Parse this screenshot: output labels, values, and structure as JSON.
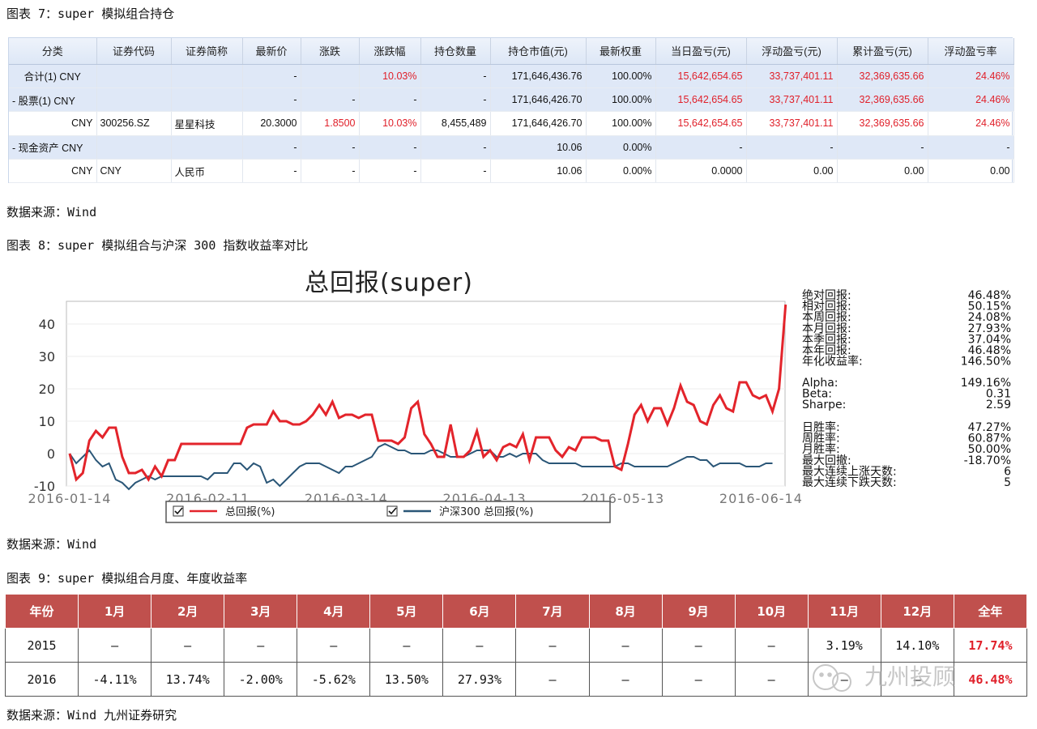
{
  "caption7": "图表 7：super 模拟组合持仓",
  "table7": {
    "headers": [
      "分类",
      "证券代码",
      "证券简称",
      "最新价",
      "涨跌",
      "涨跌幅",
      "持仓数量",
      "持仓市值(元)",
      "最新权重",
      "当日盈亏(元)",
      "浮动盈亏(元)",
      "累计盈亏(元)",
      "浮动盈亏率"
    ],
    "rows": [
      [
        "合计(1)  CNY",
        "",
        "",
        "-",
        "",
        "10.03%",
        "-",
        "171,646,436.76",
        "100.00%",
        "15,642,654.65",
        "33,737,401.11",
        "32,369,635.66",
        "24.46%"
      ],
      [
        "- 股票(1)  CNY",
        "",
        "",
        "-",
        "-",
        "-",
        "-",
        "171,646,426.70",
        "100.00%",
        "15,642,654.65",
        "33,737,401.11",
        "32,369,635.66",
        "24.46%"
      ],
      [
        "CNY",
        "300256.SZ",
        "星星科技",
        "20.3000",
        "1.8500",
        "10.03%",
        "8,455,489",
        "171,646,426.70",
        "100.00%",
        "15,642,654.65",
        "33,737,401.11",
        "32,369,635.66",
        "24.46%"
      ],
      [
        "- 现金资产  CNY",
        "",
        "",
        "-",
        "-",
        "-",
        "-",
        "10.06",
        "0.00%",
        "-",
        "-",
        "-",
        "-"
      ],
      [
        "CNY",
        "CNY",
        "人民币",
        "-",
        "-",
        "-",
        "-",
        "10.06",
        "0.00%",
        "0.0000",
        "0.00",
        "0.00",
        "0.00"
      ]
    ]
  },
  "source1": "数据来源：Wind",
  "caption8": "图表 8：super 模拟组合与沪深 300 指数收益率对比",
  "chart_data": {
    "type": "line",
    "title": "总回报(super)",
    "ylim": [
      -10,
      47
    ],
    "yticks": [
      -10,
      0,
      10,
      20,
      30,
      40
    ],
    "xlim": [
      0,
      103
    ],
    "xtick_labels": [
      "2016-01-14",
      "2016-02-11",
      "2016-03-14",
      "2016-04-13",
      "2016-05-13",
      "2016-06-14"
    ],
    "xtick_positions": [
      0,
      20,
      40,
      60,
      80,
      100
    ],
    "legend_position": "bottom",
    "series": [
      {
        "name": "总回报(%)",
        "color": "#e3242b",
        "values": [
          0,
          -8,
          -6,
          4,
          7,
          5,
          8,
          8,
          -1,
          -6,
          -6,
          -5,
          -8,
          -4,
          -7,
          -2,
          -2,
          3,
          3,
          3,
          3,
          3,
          3,
          3,
          3,
          3,
          3,
          8,
          9,
          9,
          9,
          13,
          10,
          10,
          9,
          9,
          10,
          12,
          15,
          12,
          16,
          11,
          12,
          12,
          11,
          12,
          12,
          4,
          4,
          4,
          3,
          5,
          14,
          16,
          6,
          3,
          -1,
          -1,
          9,
          -1,
          -1,
          1,
          7,
          -1,
          1,
          -2,
          2,
          3,
          2,
          6,
          -2,
          5,
          5,
          5,
          1,
          -1,
          2,
          1,
          5,
          5,
          5,
          4,
          4,
          -4,
          -5,
          3,
          12,
          15,
          10,
          14,
          14,
          9,
          14,
          21,
          16,
          15,
          10,
          9,
          15,
          18,
          14,
          13,
          22,
          22,
          18,
          17,
          18,
          13,
          20,
          46
        ],
        "x_start": 0,
        "x_step": 0.95
      },
      {
        "name": "沪深300 总回报(%)",
        "color": "#2a5677",
        "values": [
          0,
          -3,
          -1,
          1,
          -2,
          -4,
          -3,
          -8,
          -9,
          -11,
          -9,
          -8,
          -7,
          -8,
          -7,
          -7,
          -7,
          -7,
          -7,
          -7,
          -7,
          -8,
          -6,
          -6,
          -6,
          -3,
          -3,
          -5,
          -3,
          -4,
          -9,
          -8,
          -10,
          -8,
          -6,
          -4,
          -3,
          -3,
          -3,
          -4,
          -5,
          -6,
          -4,
          -4,
          -3,
          -2,
          -1,
          2,
          3,
          2,
          1,
          1,
          0,
          0,
          0,
          1,
          1,
          0,
          -1,
          -1,
          -1,
          0,
          1,
          1,
          1,
          -1,
          -1,
          0,
          -1,
          0,
          0,
          0,
          -2,
          -3,
          -3,
          -3,
          -3,
          -3,
          -4,
          -4,
          -4,
          -4,
          -4,
          -4,
          -3,
          -3,
          -4,
          -4,
          -4,
          -4,
          -4,
          -4,
          -3,
          -2,
          -1,
          -1,
          -2,
          -2,
          -4,
          -3,
          -3,
          -3,
          -3,
          -4,
          -4,
          -4,
          -3,
          -3
        ],
        "x_start": 0,
        "x_step": 0.95
      }
    ]
  },
  "stats": {
    "group1": [
      [
        "绝对回报:",
        "46.48%"
      ],
      [
        "相对回报:",
        "50.15%"
      ],
      [
        "本周回报:",
        "24.08%"
      ],
      [
        "本月回报:",
        "27.93%"
      ],
      [
        "本季回报:",
        "37.04%"
      ],
      [
        "本年回报:",
        "46.48%"
      ],
      [
        "年化收益率:",
        "146.50%"
      ]
    ],
    "group2": [
      [
        "Alpha:",
        "149.16%"
      ],
      [
        "Beta:",
        "0.31"
      ],
      [
        "Sharpe:",
        "2.59"
      ]
    ],
    "group3": [
      [
        "日胜率:",
        "47.27%"
      ],
      [
        "周胜率:",
        "60.87%"
      ],
      [
        "月胜率:",
        "50.00%"
      ],
      [
        "最大回撤:",
        "-18.70%"
      ],
      [
        "最大连续上涨天数:",
        "6"
      ],
      [
        "最大连续下跌天数:",
        "5"
      ]
    ]
  },
  "source2": "数据来源：Wind",
  "caption9": "图表 9：super 模拟组合月度、年度收益率",
  "table9": {
    "headers": [
      "年份",
      "1月",
      "2月",
      "3月",
      "4月",
      "5月",
      "6月",
      "7月",
      "8月",
      "9月",
      "10月",
      "11月",
      "12月",
      "全年"
    ],
    "rows": [
      [
        "2015",
        "–",
        "–",
        "–",
        "–",
        "–",
        "–",
        "–",
        "–",
        "–",
        "–",
        "3.19%",
        "14.10%",
        "17.74%"
      ],
      [
        "2016",
        "-4.11%",
        "13.74%",
        "-2.00%",
        "-5.62%",
        "13.50%",
        "27.93%",
        "–",
        "–",
        "–",
        "–",
        "–",
        "–",
        "46.48%"
      ]
    ]
  },
  "source3": "数据来源：Wind    九州证券研究",
  "watermark": "九州投顾",
  "colors": {
    "header_red": "#c0504d",
    "value_red": "#e0202a",
    "grid_blue": "#dfe8f7"
  }
}
